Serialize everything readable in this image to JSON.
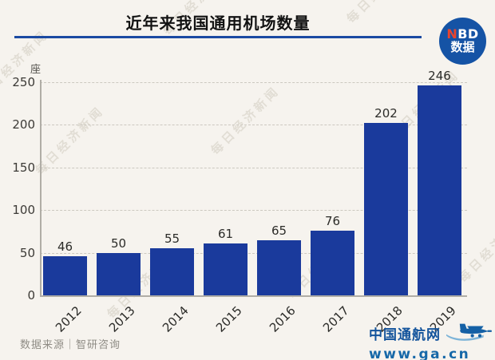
{
  "title": "近年来我国通用机场数量",
  "brand": {
    "nbd_n": "N",
    "nbd_bd": "BD",
    "nbd_bottom": "数据",
    "circle_color": "#1553a5",
    "n_color": "#e8442e"
  },
  "watermark": {
    "text": "每日经济新闻"
  },
  "source": {
    "label": "数据来源｜智研咨询"
  },
  "footer_logo": {
    "name": "中国通航网",
    "url": "www.ga.cn",
    "color": "#1668a8"
  },
  "chart_data": {
    "type": "bar",
    "title": "近年来我国通用机场数量",
    "categories": [
      "2012",
      "2013",
      "2014",
      "2015",
      "2016",
      "2017",
      "2018",
      "2019"
    ],
    "values": [
      46,
      50,
      55,
      61,
      65,
      76,
      202,
      246
    ],
    "unit": "座",
    "ylabel": "座",
    "xlabel": "",
    "ylim": [
      0,
      250
    ],
    "yticks": [
      0,
      50,
      100,
      150,
      200,
      250
    ],
    "grid": "horizontal-dashed",
    "legend": "none",
    "bar_color": "#1a3a9c",
    "data_labels": true
  }
}
